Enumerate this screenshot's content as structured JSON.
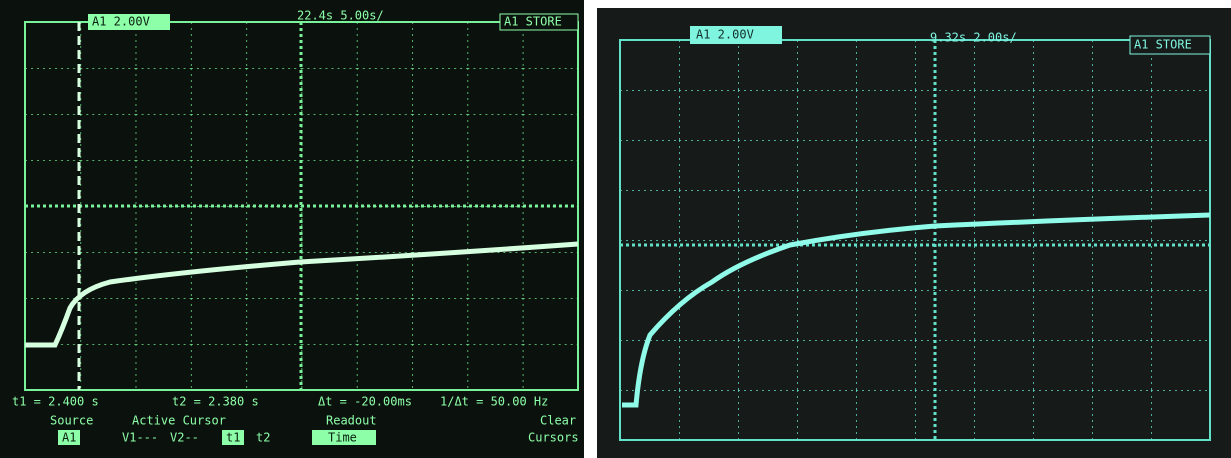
{
  "left": {
    "header": {
      "channel": "A1 2.00V",
      "timebase": "22.4s 5.00s/",
      "mode": "A1 STORE"
    },
    "readout": {
      "t1": "t1 = 2.400 s",
      "t2": "t2 = 2.380 s",
      "delta_t": "Δt = -20.00ms",
      "inv_delta_t": "1/Δt = 50.00 Hz"
    },
    "menu": {
      "source": "Source",
      "source_value": "A1",
      "active_cursor": "Active Cursor",
      "v1": "V1---",
      "v2": "V2--",
      "cursor_t1": "t1",
      "cursor_t2": "t2",
      "readout": "Readout",
      "readout_value": "Time",
      "clear": "Clear",
      "cursors": "Cursors"
    }
  },
  "right": {
    "header": {
      "channel": "A1 2.00V",
      "timebase": "9.32s 2.00s/",
      "mode": "A1 STORE"
    }
  }
}
